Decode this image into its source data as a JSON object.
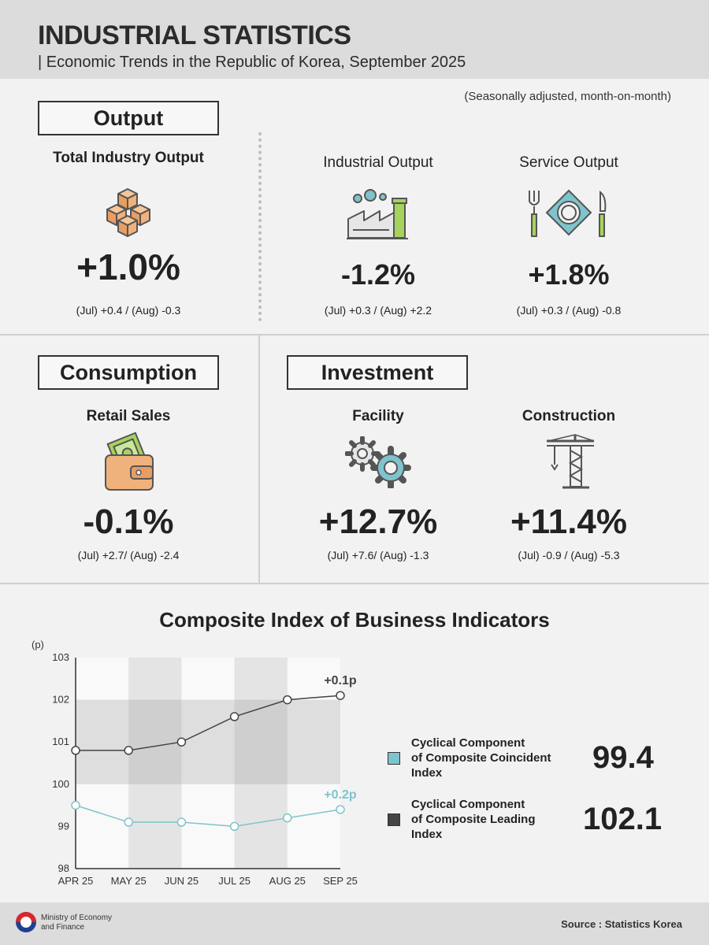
{
  "header": {
    "title": "INDUSTRIAL STATISTICS",
    "subtitle": "| Economic Trends in the Republic of Korea, September 2025"
  },
  "note": "(Seasonally adjusted, month-on-month)",
  "output": {
    "section_label": "Output",
    "total": {
      "label": "Total Industry Output",
      "value": "+1.0%",
      "detail": "(Jul) +0.4 / (Aug) -0.3",
      "icon": "boxes-icon"
    },
    "industrial": {
      "label": "Industrial Output",
      "value": "-1.2%",
      "detail": "(Jul) +0.3 / (Aug) +2.2",
      "icon": "factory-icon"
    },
    "service": {
      "label": "Service Output",
      "value": "+1.8%",
      "detail": "(Jul) +0.3 / (Aug) -0.8",
      "icon": "dining-icon"
    }
  },
  "consumption": {
    "section_label": "Consumption",
    "retail": {
      "label": "Retail Sales",
      "value": "-0.1%",
      "detail": "(Jul) +2.7/ (Aug) -2.4",
      "icon": "wallet-icon"
    }
  },
  "investment": {
    "section_label": "Investment",
    "facility": {
      "label": "Facility",
      "value": "+12.7%",
      "detail": "(Jul) +7.6/ (Aug) -1.3",
      "icon": "gears-icon"
    },
    "construction": {
      "label": "Construction",
      "value": "+11.4%",
      "detail": "(Jul) -0.9 / (Aug) -5.3",
      "icon": "crane-icon"
    }
  },
  "chart_data": {
    "type": "line",
    "title": "Composite Index of Business Indicators",
    "ylabel": "(p)",
    "categories": [
      "APR 25",
      "MAY 25",
      "JUN 25",
      "JUL 25",
      "AUG 25",
      "SEP 25"
    ],
    "ylim": [
      98,
      103
    ],
    "yticks": [
      98,
      99,
      100,
      101,
      102,
      103
    ],
    "series": [
      {
        "name": "Cyclical Component of Composite Leading Index",
        "values": [
          100.8,
          100.8,
          101.0,
          101.6,
          102.0,
          102.1
        ],
        "color": "#444444",
        "annotation": "+0.1p"
      },
      {
        "name": "Cyclical Component of Composite Coincident Index",
        "values": [
          99.5,
          99.1,
          99.1,
          99.0,
          99.2,
          99.4
        ],
        "color": "#7fc3cc",
        "annotation": "+0.2p"
      }
    ],
    "legend": [
      {
        "line1": "Cyclical Component",
        "line2": "of Composite Coincident Index",
        "value": "99.4",
        "color": "#7fc3cc"
      },
      {
        "line1": "Cyclical Component",
        "line2": "of Composite Leading Index",
        "value": "102.1",
        "color": "#444444"
      }
    ],
    "band": [
      100,
      102
    ],
    "grid": false
  },
  "footer": {
    "ministry_line1": "Ministry of Economy",
    "ministry_line2": "and Finance",
    "source": "Source : Statistics Korea"
  }
}
